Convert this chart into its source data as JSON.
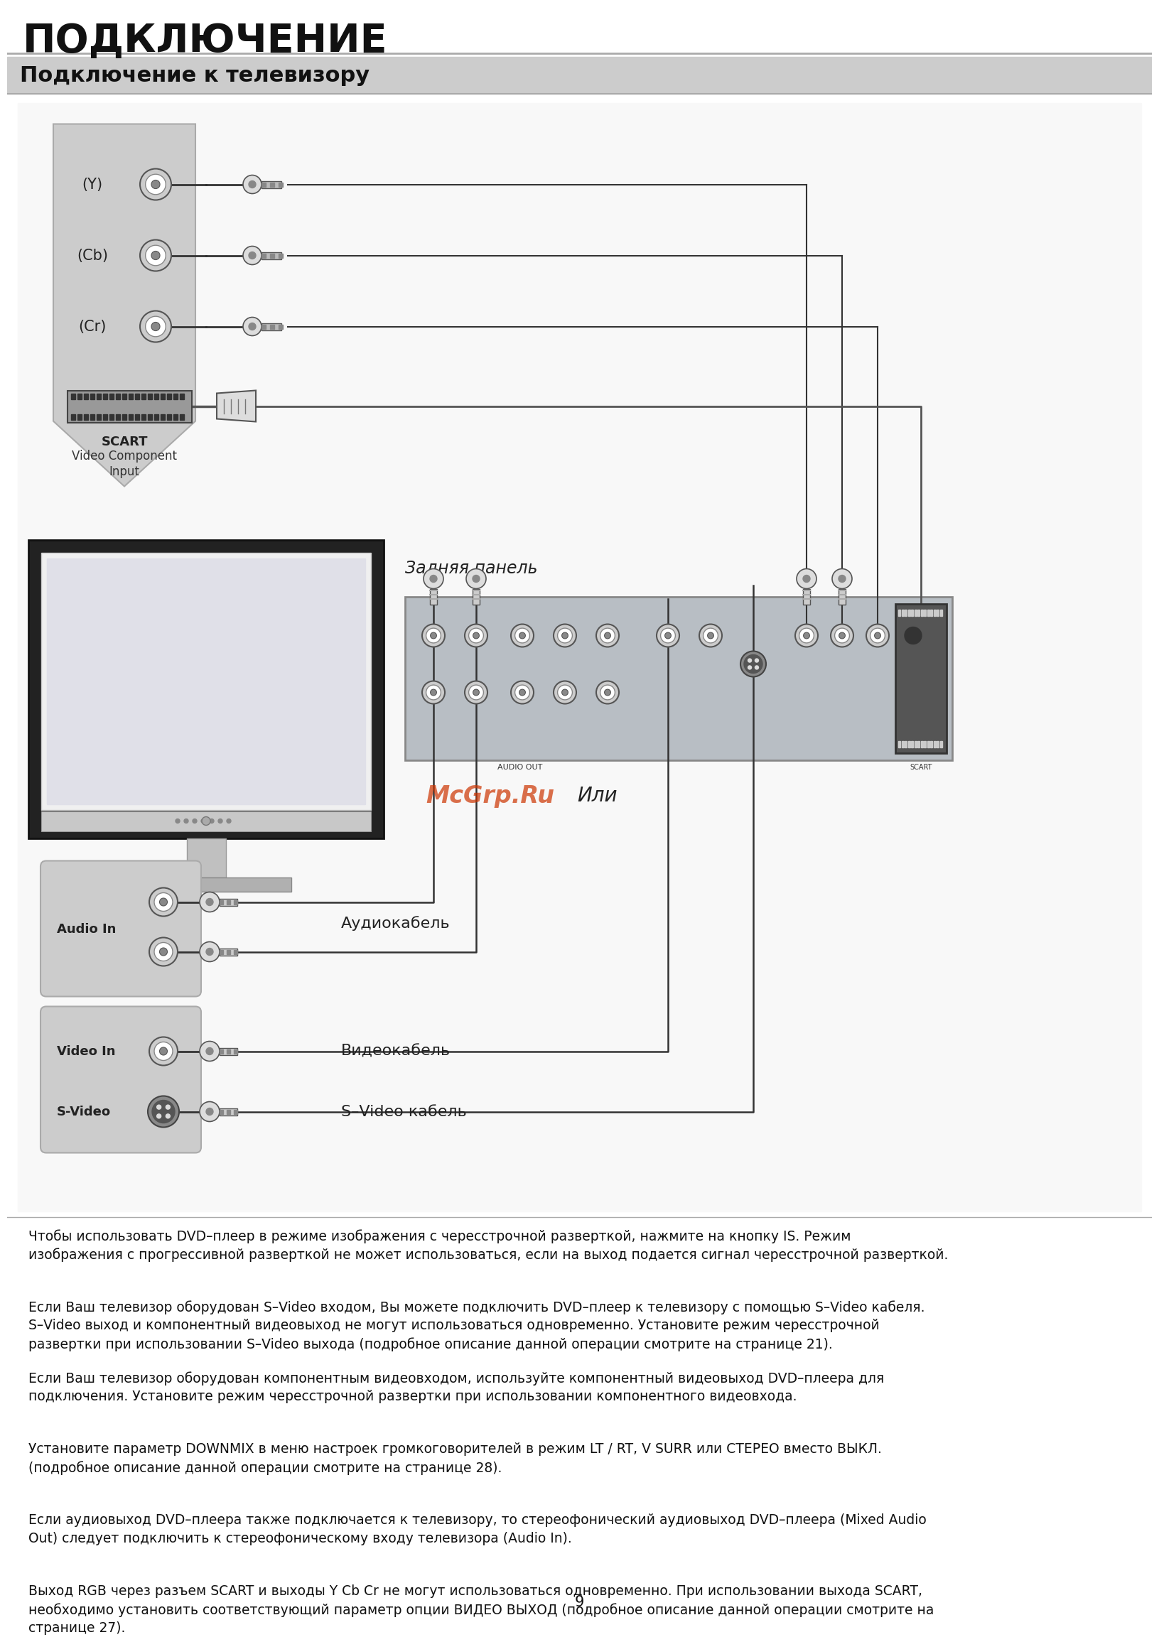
{
  "title": "ПОДКЛЮЧЕНИЕ",
  "subtitle": "Подключение к телевизору",
  "page_number": "9",
  "labels": {
    "rear_panel": "Задняя панель",
    "audio_cable": "Аудиокабель",
    "video_cable": "Видеокабель",
    "svideo_cable": "S–Video кабель",
    "or_label": "Или",
    "mcgrp": "McGrp.Ru",
    "y": "(Y)",
    "cb": "(Cb)",
    "cr": "(Cr)",
    "scart": "SCART",
    "video_comp": "Video Component\nInput",
    "audio_in": "Audio In",
    "video_in": "Video In",
    "s_video": "S-Video"
  },
  "body_paragraphs": [
    "Чтобы использовать DVD–плеер в режиме изображения с чересстрочной разверткой, нажмите на кнопку IS. Режим\nизображения с прогрессивной разверткой не может использоваться, если на выход подается сигнал чересстрочной разверткой.",
    "Если Ваш телевизор оборудован S–Video входом, Вы можете подключить DVD–плеер к телевизору с помощью S–Video кабеля.\nS–Video выход и компонентный видеовыход не могут использоваться одновременно. Установите режим чересстрочной\nразвертки при использовании S–Video выхода (подробное описание данной операции смотрите на странице 21).",
    "Если Ваш телевизор оборудован компонентным видеовходом, используйте компонентный видеовыход DVD–плеера для\nподключения. Установите режим чересстрочной развертки при использовании компонентного видеовхода.",
    "Установите параметр DOWNMIX в меню настроек громкоговорителей в режим LT / RT, V SURR или СТЕРЕО вместо ВЫКЛ.\n(подробное описание данной операции смотрите на странице 28).",
    "Если аудиовыход DVD–плеера также подключается к телевизору, то стереофонический аудиовыход DVD–плеера (Mixed Audio\nOut) следует подключить к стереофоническому входу телевизора (Audio In).",
    "Выход RGB через разъем SCART и выходы Y Cb Cr не могут использоваться одновременно. При использовании выхода SCART,\nнеобходимо установить соответствующий параметр опции ВИДЕО ВЫХОД (подробное описание данной операции смотрите на\nстранице 27)."
  ],
  "colors": {
    "white": "#ffffff",
    "subtitle_bg": "#cccccc",
    "body_text": "#111111",
    "title_text": "#111111",
    "diagram_bg": "#f0f0f0",
    "panel_gray": "#c8c8c8",
    "tv_body": "#d0d0d0",
    "tv_screen_border": "#111111",
    "tv_screen_bg": "#e8e8e8",
    "dvd_panel": "#b0b8c0",
    "connector_gray": "#888888",
    "connector_dark": "#555555",
    "wire_black": "#333333",
    "mcgrp_red": "#cc3300",
    "sep_line": "#aaaaaa"
  }
}
